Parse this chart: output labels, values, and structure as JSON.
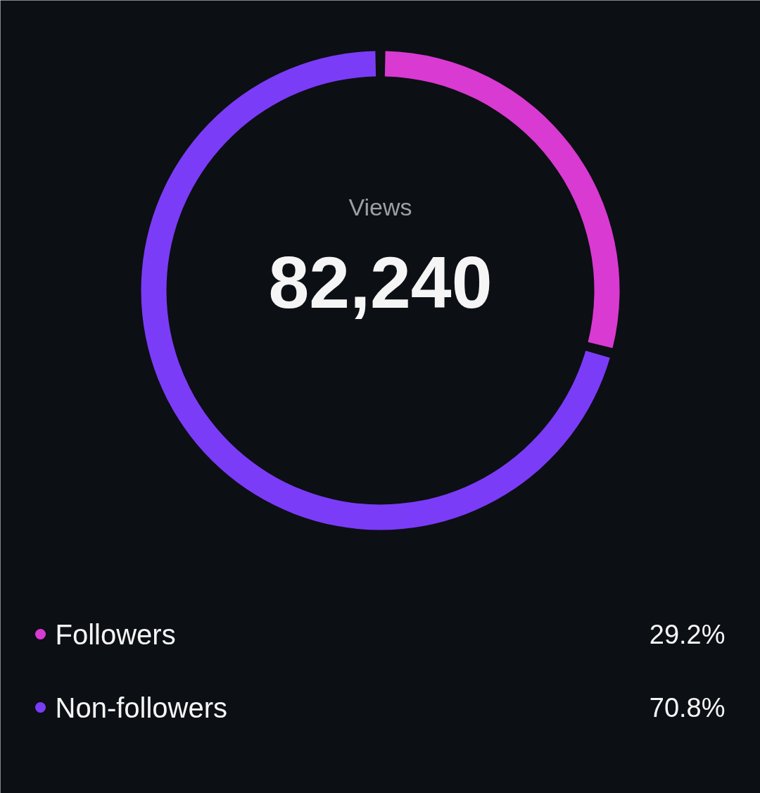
{
  "chart_data": {
    "type": "donut",
    "title": "Views",
    "annotations": [
      "82,240"
    ],
    "categories": [
      "Followers",
      "Non-followers"
    ],
    "values": [
      29.2,
      70.8
    ],
    "colors": [
      "#d93ad1",
      "#7b3cf7"
    ],
    "value_labels": [
      "29.2%",
      "70.8%"
    ],
    "legend": "bottom"
  }
}
